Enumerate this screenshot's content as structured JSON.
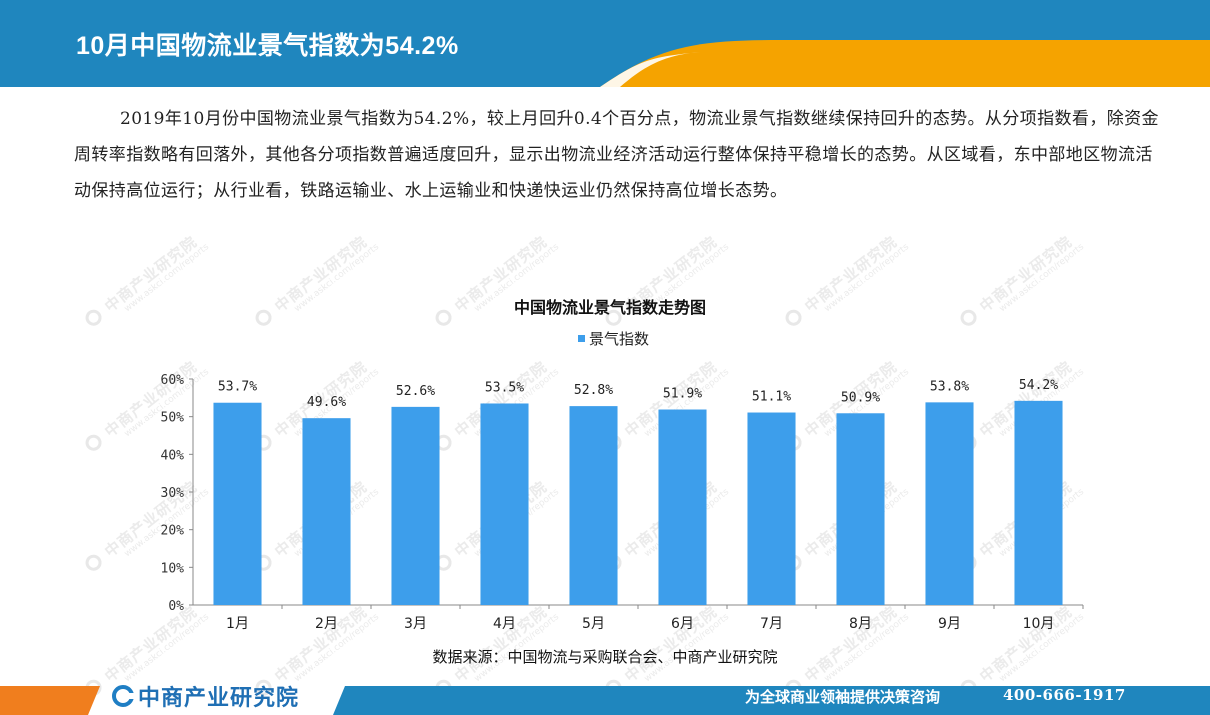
{
  "header": {
    "title": "10月中国物流业景气指数为54.2%",
    "colors": {
      "band": "#1f86be",
      "accent": "#f5a300"
    }
  },
  "summary": "2019年10月份中国物流业景气指数为54.2%，较上月回升0.4个百分点，物流业景气指数继续保持回升的态势。从分项指数看，除资金周转率指数略有回落外，其他各分项指数普遍适度回升，显示出物流业经济活动运行整体保持平稳增长的态势。从区域看，东中部地区物流活动保持高位运行；从行业看，铁路运输业、水上运输业和快递快运业仍然保持高位增长态势。",
  "chart_data": {
    "type": "bar",
    "title": "中国物流业景气指数走势图",
    "categories": [
      "1月",
      "2月",
      "3月",
      "4月",
      "5月",
      "6月",
      "7月",
      "8月",
      "9月",
      "10月"
    ],
    "series": [
      {
        "name": "景气指数",
        "values": [
          53.7,
          49.6,
          52.6,
          53.5,
          52.8,
          51.9,
          51.1,
          50.9,
          53.8,
          54.2
        ],
        "data_labels": [
          "53.7%",
          "49.6%",
          "52.6%",
          "53.5%",
          "52.8%",
          "51.9%",
          "51.1%",
          "50.9%",
          "53.8%",
          "54.2%"
        ],
        "color": "#3d9eeb"
      }
    ],
    "ylim": [
      0,
      60
    ],
    "yticks": [
      0,
      10,
      20,
      30,
      40,
      50,
      60
    ],
    "ytick_labels": [
      "0%",
      "10%",
      "20%",
      "30%",
      "40%",
      "50%",
      "60%"
    ],
    "grid": false,
    "legend": "top-center",
    "xlabel": "",
    "ylabel": ""
  },
  "source": "数据来源：中国物流与采购联合会、中商产业研究院",
  "footer": {
    "brand": "中商产业研究院",
    "brand_icon": "company-logo-icon",
    "slogan": "为全球商业领袖提供决策咨询",
    "hotline": "400-666-1917",
    "colors": {
      "band": "#1f86be",
      "accent": "#f07e1e",
      "brand": "#1f6fb4"
    }
  },
  "watermark": {
    "cn": "中商产业研究院",
    "en": "www.askci.com/reports"
  }
}
